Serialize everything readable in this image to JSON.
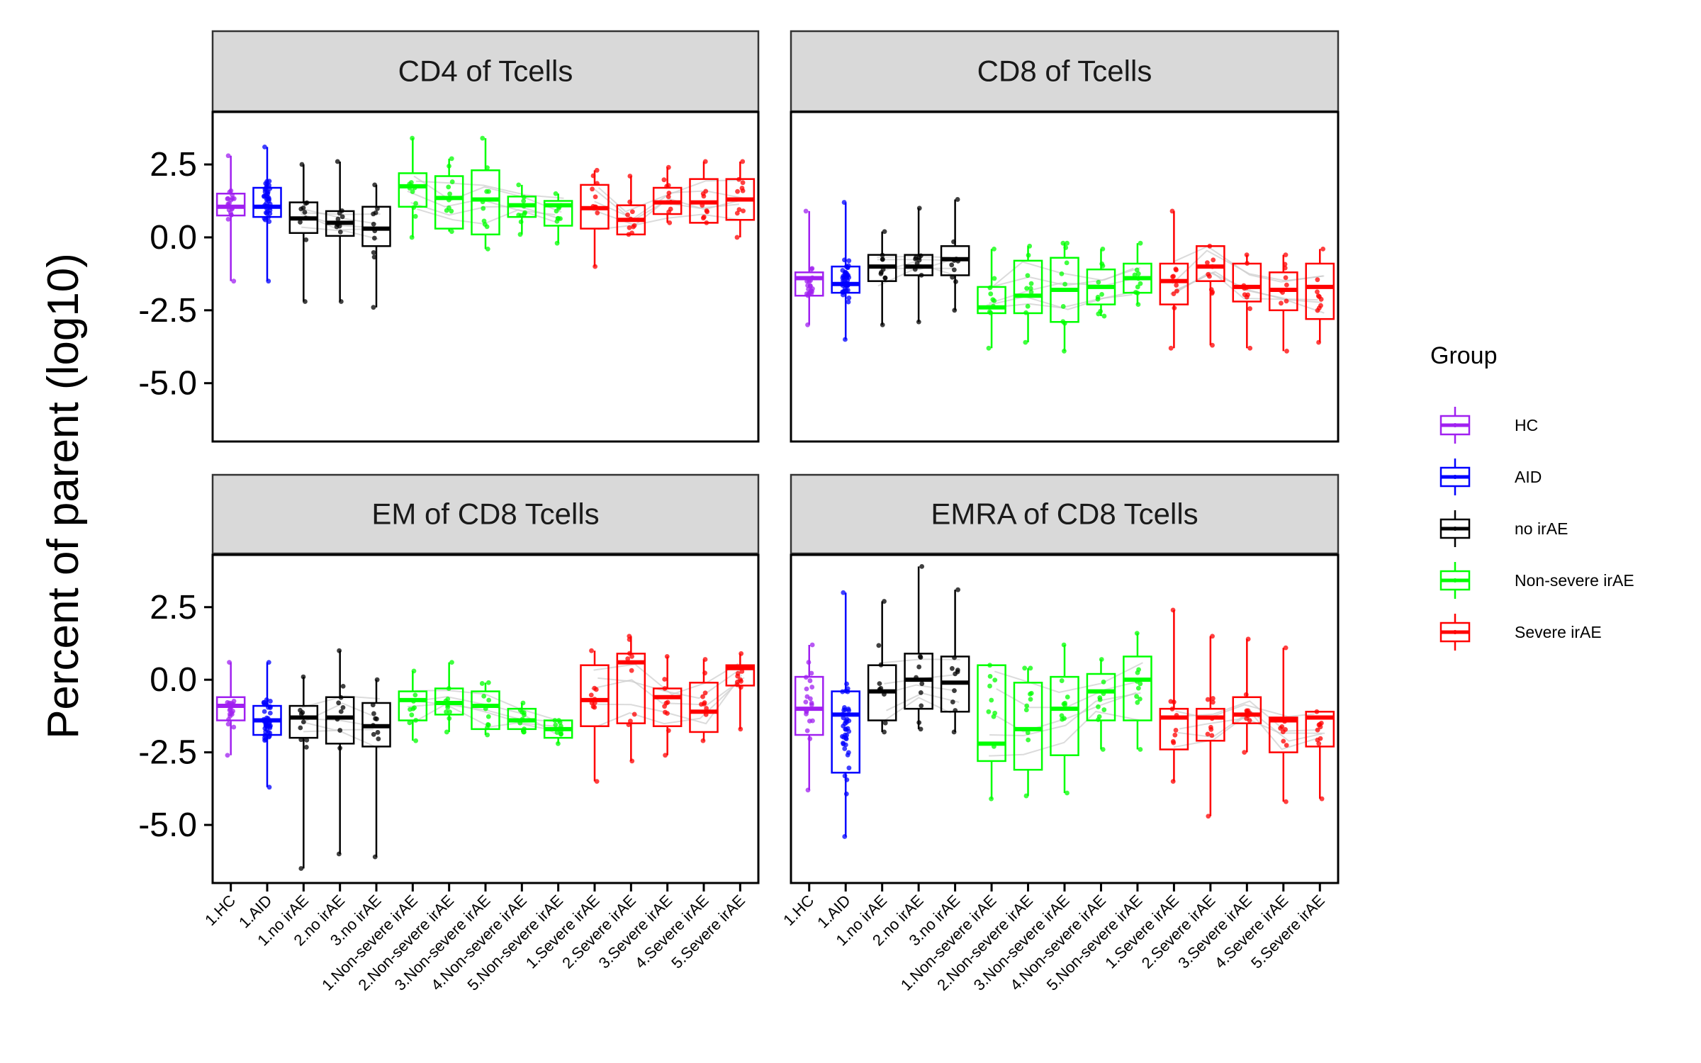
{
  "chart_data": {
    "type": "box",
    "ylabel": "Percent of parent (log10)",
    "yticks": [
      "2.5",
      "0.0",
      "-2.5",
      "-5.0"
    ],
    "ylim": [
      -7,
      4.3
    ],
    "categories": [
      "1.HC",
      "1.AID",
      "1.no irAE",
      "2.no irAE",
      "3.no irAE",
      "1.Non-severe irAE",
      "2.Non-severe irAE",
      "3.Non-severe irAE",
      "4.Non-severe irAE",
      "5.Non-severe irAE",
      "1.Severe irAE",
      "2.Severe irAE",
      "3.Severe irAE",
      "4.Severe irAE",
      "5.Severe irAE"
    ],
    "category_group": [
      "HC",
      "AID",
      "no irAE",
      "no irAE",
      "no irAE",
      "Non-severe irAE",
      "Non-severe irAE",
      "Non-severe irAE",
      "Non-severe irAE",
      "Non-severe irAE",
      "Severe irAE",
      "Severe irAE",
      "Severe irAE",
      "Severe irAE",
      "Severe irAE"
    ],
    "legend": {
      "title": "Group",
      "position": "right",
      "items": [
        {
          "name": "HC",
          "color": "#a020f0"
        },
        {
          "name": "AID",
          "color": "#0000ff"
        },
        {
          "name": "no irAE",
          "color": "#000000"
        },
        {
          "name": "Non-severe irAE",
          "color": "#00ff00"
        },
        {
          "name": "Severe irAE",
          "color": "#ff0000"
        }
      ]
    },
    "panels": [
      {
        "title": "CD4 of Tcells",
        "boxes": [
          {
            "min": -1.5,
            "q1": 0.75,
            "median": 1.05,
            "q3": 1.5,
            "max": 2.8
          },
          {
            "min": -1.5,
            "q1": 0.7,
            "median": 1.05,
            "q3": 1.7,
            "max": 3.1
          },
          {
            "min": -2.2,
            "q1": 0.15,
            "median": 0.65,
            "q3": 1.2,
            "max": 2.5
          },
          {
            "min": -2.2,
            "q1": 0.05,
            "median": 0.5,
            "q3": 0.9,
            "max": 2.6
          },
          {
            "min": -2.4,
            "q1": -0.3,
            "median": 0.3,
            "q3": 1.05,
            "max": 1.8
          },
          {
            "min": 0.0,
            "q1": 1.05,
            "median": 1.75,
            "q3": 2.2,
            "max": 3.4
          },
          {
            "min": 0.2,
            "q1": 0.3,
            "median": 1.35,
            "q3": 2.1,
            "max": 2.7
          },
          {
            "min": -0.4,
            "q1": 0.1,
            "median": 1.3,
            "q3": 2.3,
            "max": 3.4
          },
          {
            "min": 0.1,
            "q1": 0.7,
            "median": 1.1,
            "q3": 1.4,
            "max": 1.8
          },
          {
            "min": -0.2,
            "q1": 0.4,
            "median": 1.1,
            "q3": 1.25,
            "max": 1.5
          },
          {
            "min": -1.0,
            "q1": 0.3,
            "median": 1.0,
            "q3": 1.8,
            "max": 2.3
          },
          {
            "min": 0.1,
            "q1": 0.1,
            "median": 0.6,
            "q3": 1.1,
            "max": 2.1
          },
          {
            "min": 0.5,
            "q1": 0.8,
            "median": 1.2,
            "q3": 1.7,
            "max": 2.4
          },
          {
            "min": 0.5,
            "q1": 0.5,
            "median": 1.2,
            "q3": 2.0,
            "max": 2.6
          },
          {
            "min": 0.0,
            "q1": 0.6,
            "median": 1.3,
            "q3": 2.0,
            "max": 2.6
          }
        ]
      },
      {
        "title": "CD8 of Tcells",
        "boxes": [
          {
            "min": -3.0,
            "q1": -2.0,
            "median": -1.4,
            "q3": -1.2,
            "max": 0.9
          },
          {
            "min": -3.5,
            "q1": -1.9,
            "median": -1.6,
            "q3": -1.0,
            "max": 1.2
          },
          {
            "min": -3.0,
            "q1": -1.5,
            "median": -1.0,
            "q3": -0.6,
            "max": 0.2
          },
          {
            "min": -2.9,
            "q1": -1.3,
            "median": -1.0,
            "q3": -0.6,
            "max": 1.0
          },
          {
            "min": -2.5,
            "q1": -1.3,
            "median": -0.75,
            "q3": -0.3,
            "max": 1.3
          },
          {
            "min": -3.8,
            "q1": -2.6,
            "median": -2.4,
            "q3": -1.7,
            "max": -0.4
          },
          {
            "min": -3.6,
            "q1": -2.6,
            "median": -2.0,
            "q3": -0.8,
            "max": -0.3
          },
          {
            "min": -3.9,
            "q1": -2.9,
            "median": -1.8,
            "q3": -0.7,
            "max": -0.2
          },
          {
            "min": -2.7,
            "q1": -2.3,
            "median": -1.7,
            "q3": -1.1,
            "max": -0.4
          },
          {
            "min": -2.3,
            "q1": -1.9,
            "median": -1.4,
            "q3": -0.9,
            "max": -0.2
          },
          {
            "min": -3.8,
            "q1": -2.3,
            "median": -1.5,
            "q3": -0.9,
            "max": 0.9
          },
          {
            "min": -3.7,
            "q1": -1.5,
            "median": -1.0,
            "q3": -0.3,
            "max": -0.3
          },
          {
            "min": -3.8,
            "q1": -2.2,
            "median": -1.7,
            "q3": -0.9,
            "max": -0.6
          },
          {
            "min": -3.9,
            "q1": -2.5,
            "median": -1.8,
            "q3": -1.2,
            "max": -0.6
          },
          {
            "min": -3.6,
            "q1": -2.8,
            "median": -1.7,
            "q3": -0.9,
            "max": -0.4
          }
        ]
      },
      {
        "title": "EM of CD8 Tcells",
        "boxes": [
          {
            "min": -2.6,
            "q1": -1.4,
            "median": -0.9,
            "q3": -0.6,
            "max": 0.6
          },
          {
            "min": -3.7,
            "q1": -1.9,
            "median": -1.4,
            "q3": -0.9,
            "max": 0.6
          },
          {
            "min": -6.5,
            "q1": -2.0,
            "median": -1.3,
            "q3": -0.9,
            "max": 0.1
          },
          {
            "min": -6.0,
            "q1": -2.2,
            "median": -1.3,
            "q3": -0.6,
            "max": 1.0
          },
          {
            "min": -6.1,
            "q1": -2.3,
            "median": -1.6,
            "q3": -0.8,
            "max": 0.0
          },
          {
            "min": -2.1,
            "q1": -1.4,
            "median": -0.7,
            "q3": -0.4,
            "max": 0.3
          },
          {
            "min": -1.8,
            "q1": -1.2,
            "median": -0.8,
            "q3": -0.3,
            "max": 0.6
          },
          {
            "min": -1.9,
            "q1": -1.7,
            "median": -0.9,
            "q3": -0.4,
            "max": -0.1
          },
          {
            "min": -1.8,
            "q1": -1.7,
            "median": -1.4,
            "q3": -1.0,
            "max": -0.8
          },
          {
            "min": -2.2,
            "q1": -2.0,
            "median": -1.7,
            "q3": -1.4,
            "max": -1.4
          },
          {
            "min": -3.5,
            "q1": -1.6,
            "median": -0.7,
            "q3": 0.5,
            "max": 1.0
          },
          {
            "min": -2.8,
            "q1": -1.5,
            "median": 0.6,
            "q3": 0.9,
            "max": 1.5
          },
          {
            "min": -2.6,
            "q1": -1.6,
            "median": -0.6,
            "q3": -0.3,
            "max": 0.8
          },
          {
            "min": -2.1,
            "q1": -1.8,
            "median": -1.1,
            "q3": -0.1,
            "max": 0.7
          },
          {
            "min": -1.7,
            "q1": -0.2,
            "median": 0.4,
            "q3": 0.5,
            "max": 0.9
          }
        ]
      },
      {
        "title": "EMRA of CD8 Tcells",
        "boxes": [
          {
            "min": -3.8,
            "q1": -1.9,
            "median": -1.0,
            "q3": 0.1,
            "max": 1.2
          },
          {
            "min": -5.4,
            "q1": -3.2,
            "median": -1.2,
            "q3": -0.4,
            "max": 3.0
          },
          {
            "min": -1.8,
            "q1": -1.4,
            "median": -0.4,
            "q3": 0.5,
            "max": 2.7
          },
          {
            "min": -1.7,
            "q1": -1.0,
            "median": 0.0,
            "q3": 0.9,
            "max": 3.9
          },
          {
            "min": -1.8,
            "q1": -1.1,
            "median": -0.1,
            "q3": 0.8,
            "max": 3.1
          },
          {
            "min": -4.1,
            "q1": -2.8,
            "median": -2.2,
            "q3": 0.5,
            "max": 0.5
          },
          {
            "min": -4.0,
            "q1": -3.1,
            "median": -1.7,
            "q3": -0.1,
            "max": 0.4
          },
          {
            "min": -3.9,
            "q1": -2.6,
            "median": -1.0,
            "q3": 0.1,
            "max": 1.2
          },
          {
            "min": -2.4,
            "q1": -1.4,
            "median": -0.4,
            "q3": 0.2,
            "max": 0.7
          },
          {
            "min": -2.4,
            "q1": -1.4,
            "median": 0.0,
            "q3": 0.8,
            "max": 1.6
          },
          {
            "min": -3.5,
            "q1": -2.4,
            "median": -1.3,
            "q3": -1.0,
            "max": 2.4
          },
          {
            "min": -4.7,
            "q1": -2.1,
            "median": -1.3,
            "q3": -1.0,
            "max": 1.5
          },
          {
            "min": -2.5,
            "q1": -1.5,
            "median": -1.2,
            "q3": -0.6,
            "max": 1.4
          },
          {
            "min": -4.2,
            "q1": -2.5,
            "median": -1.4,
            "q3": -1.3,
            "max": 1.1
          },
          {
            "min": -4.1,
            "q1": -2.3,
            "median": -1.3,
            "q3": -1.1,
            "max": -1.1
          }
        ]
      }
    ]
  }
}
